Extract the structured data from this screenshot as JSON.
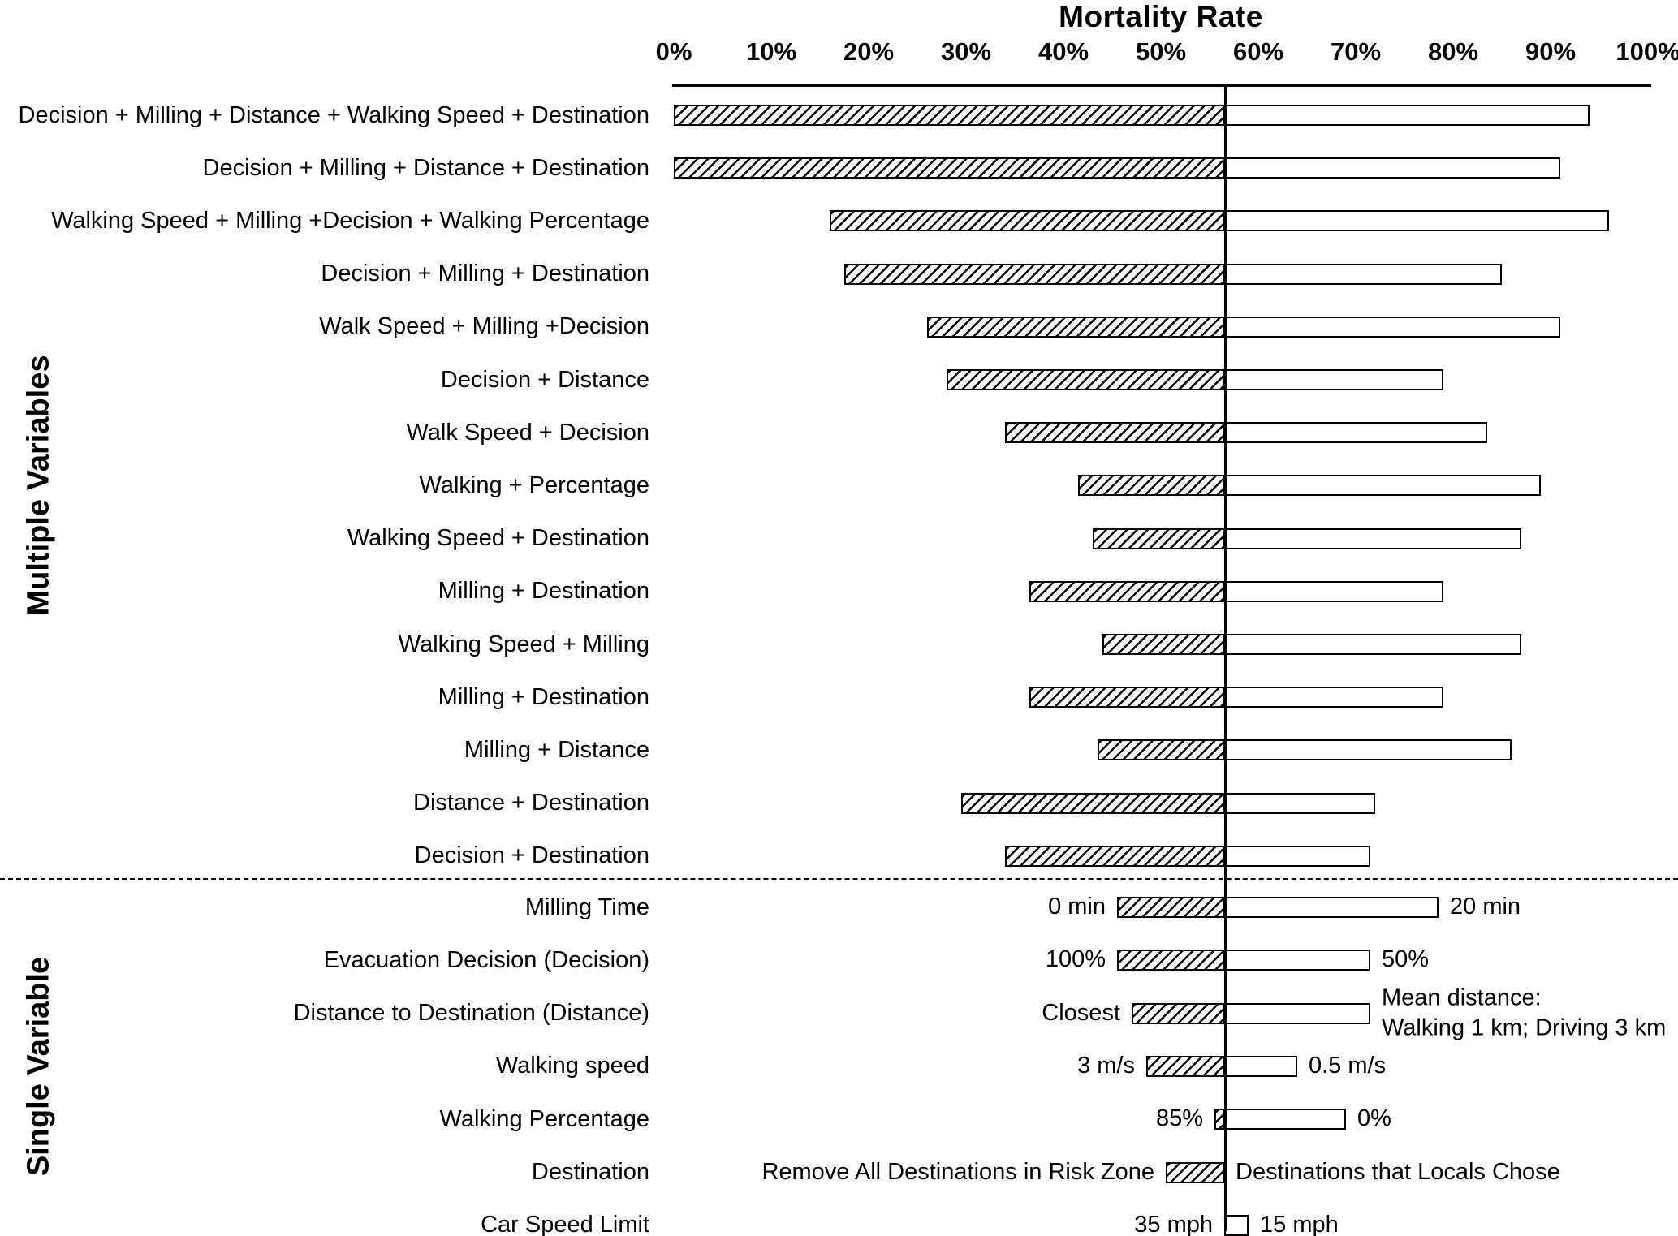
{
  "chart_data": {
    "type": "bar",
    "subtype": "tornado",
    "title": "Mortality Rate",
    "x_ticks": [
      "0%",
      "10%",
      "20%",
      "30%",
      "40%",
      "50%",
      "60%",
      "70%",
      "80%",
      "90%",
      "100%"
    ],
    "x_min": 0,
    "x_max": 100,
    "baseline": 56.5,
    "legend": {
      "low_bar_style": "hatched",
      "high_bar_style": "plain-outline"
    },
    "colors": {
      "bar_border": "#000000",
      "text": "#000000",
      "background": "#ffffff"
    },
    "sections": [
      {
        "label": "Multiple Variables",
        "rows": [
          {
            "label": "Decision + Milling + Distance  + Walking Speed + Destination",
            "low": 0,
            "high": 94
          },
          {
            "label": "Decision + Milling + Distance + Destination",
            "low": 0,
            "high": 91
          },
          {
            "label": "Walking Speed + Milling +Decision + Walking Percentage",
            "low": 16,
            "high": 96
          },
          {
            "label": "Decision + Milling + Destination",
            "low": 17.5,
            "high": 85
          },
          {
            "label": "Walk Speed + Milling +Decision",
            "low": 26,
            "high": 91
          },
          {
            "label": "Decision + Distance",
            "low": 28,
            "high": 79
          },
          {
            "label": "Walk Speed + Decision",
            "low": 34,
            "high": 83.5
          },
          {
            "label": "Walking + Percentage",
            "low": 41.5,
            "high": 89
          },
          {
            "label": "Walking Speed + Destination",
            "low": 43,
            "high": 87
          },
          {
            "label": "Milling + Destination",
            "low": 36.5,
            "high": 79
          },
          {
            "label": "Walking Speed + Milling",
            "low": 44,
            "high": 87
          },
          {
            "label": "Milling + Destination",
            "low": 36.5,
            "high": 79
          },
          {
            "label": "Milling + Distance",
            "low": 43.5,
            "high": 86
          },
          {
            "label": "Distance + Destination",
            "low": 29.5,
            "high": 72
          },
          {
            "label": "Decision + Destination",
            "low": 34,
            "high": 71.5
          }
        ]
      },
      {
        "label": "Single Variable",
        "rows": [
          {
            "label": "Milling Time",
            "left_label": "0 min",
            "right_label": "20 min",
            "low": 45.5,
            "high": 78.5
          },
          {
            "label": "Evacuation Decision (Decision)",
            "left_label": "100%",
            "right_label": "50%",
            "low": 45.5,
            "high": 71.5
          },
          {
            "label": "Distance to Destination (Distance)",
            "left_label": "Closest",
            "right_label": [
              "Mean distance:",
              "Walking 1 km; Driving 3 km"
            ],
            "low": 47,
            "high": 71.5
          },
          {
            "label": "Walking speed",
            "left_label": "3 m/s",
            "right_label": "0.5 m/s",
            "low": 48.5,
            "high": 64
          },
          {
            "label": "Walking Percentage",
            "left_label": "85%",
            "right_label": "0%",
            "low": 55.5,
            "high": 69
          },
          {
            "label": "Destination",
            "left_label": "Remove All Destinations in Risk Zone",
            "right_label": "Destinations that Locals Chose",
            "low": 50.5,
            "high": 56.5
          },
          {
            "label": "Car Speed Limit",
            "left_label": "35 mph",
            "right_label": "15 mph",
            "low": 56.5,
            "high": 59
          }
        ]
      }
    ]
  }
}
